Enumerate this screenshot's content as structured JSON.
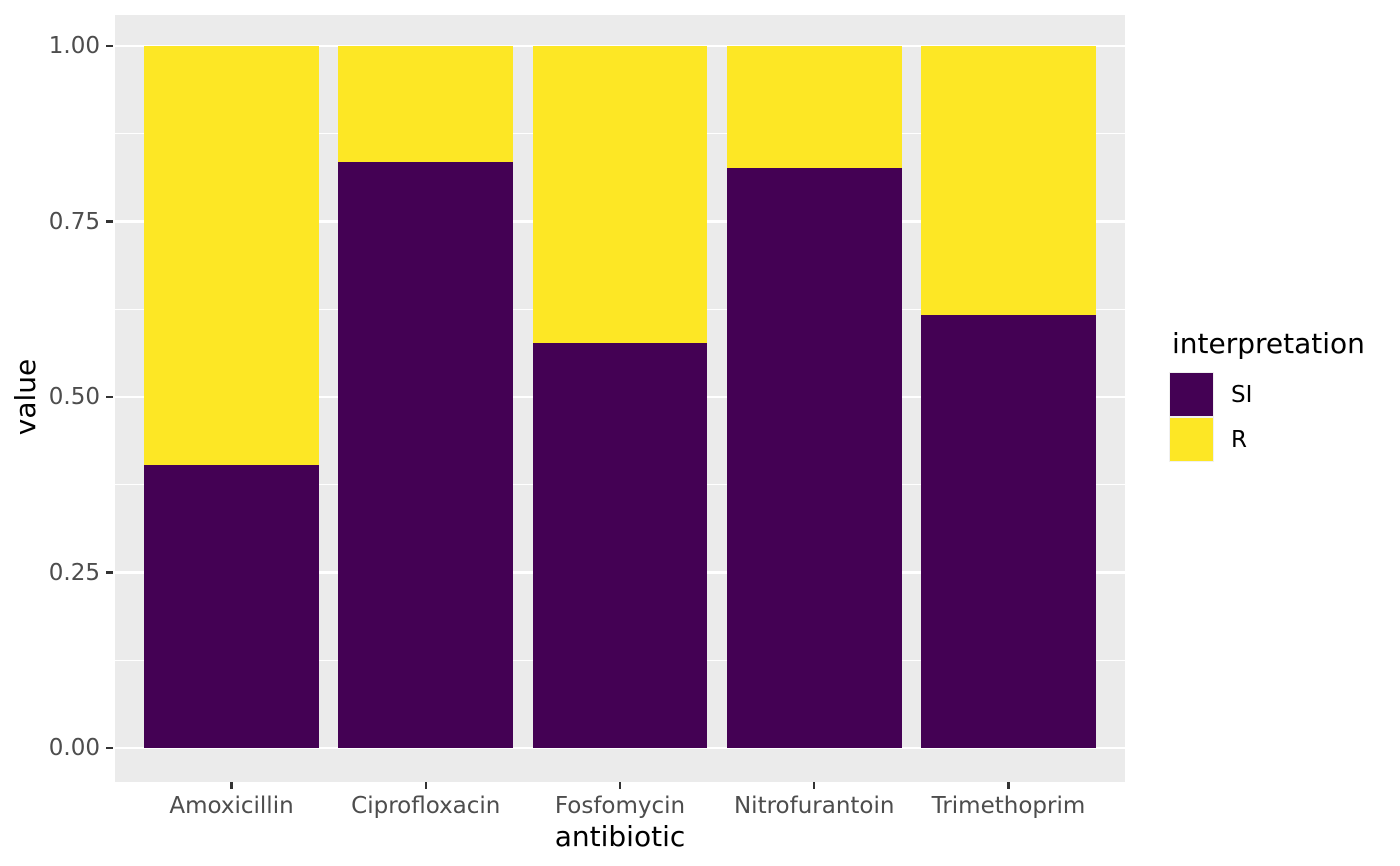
{
  "chart_data": {
    "type": "bar",
    "stacked": true,
    "orientation": "vertical",
    "title": "",
    "xlabel": "antibiotic",
    "ylabel": "value",
    "categories": [
      "Amoxicillin",
      "Ciprofloxacin",
      "Fosfomycin",
      "Nitrofurantoin",
      "Trimethoprim"
    ],
    "series": [
      {
        "name": "SI",
        "color": "#440154",
        "values": [
          0.403,
          0.835,
          0.577,
          0.826,
          0.617
        ]
      },
      {
        "name": "R",
        "color": "#FDE725",
        "values": [
          0.597,
          0.165,
          0.423,
          0.174,
          0.383
        ]
      }
    ],
    "ylim": [
      0,
      1
    ],
    "yticks": [
      0,
      0.25,
      0.5,
      0.75,
      1
    ],
    "ytick_labels": [
      "0.00",
      "0.25",
      "0.50",
      "0.75",
      "1.00"
    ],
    "minor_gridline_values": [
      0.125,
      0.375,
      0.625,
      0.875
    ],
    "grid": true,
    "bar_width_fraction": 0.9,
    "legend": {
      "title": "interpretation",
      "position": "right",
      "entries": [
        {
          "label": "SI",
          "color": "#440154"
        },
        {
          "label": "R",
          "color": "#FDE725"
        }
      ]
    },
    "style": {
      "panel_bg": "#EBEBEB",
      "grid_color": "#FFFFFF",
      "tick_text_color": "#4D4D4D",
      "tick_mark_color": "#333333",
      "axis_title_color": "#000000",
      "background": "#FFFFFF"
    }
  }
}
